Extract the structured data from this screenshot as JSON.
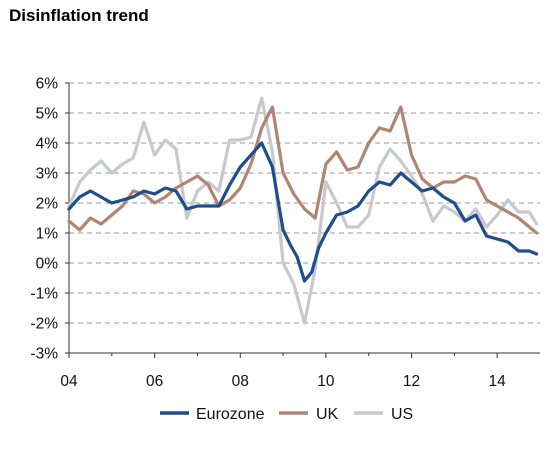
{
  "chart_data": {
    "type": "line",
    "title": "Disinflation trend",
    "xlabel": "",
    "ylabel": "",
    "x_ticks": [
      "04",
      "06",
      "08",
      "10",
      "12",
      "14"
    ],
    "y_ticks": [
      "6%",
      "5%",
      "4%",
      "3%",
      "2%",
      "1%",
      "0%",
      "-1%",
      "-2%",
      "-3%"
    ],
    "xlim": [
      2004.0,
      2015.0
    ],
    "ylim": [
      -3,
      6
    ],
    "grid": "horizontal dashed",
    "legend_position": "bottom",
    "series": [
      {
        "name": "Eurozone",
        "color": "#1f4e8c",
        "x": [
          2004.0,
          2004.25,
          2004.5,
          2004.75,
          2005.0,
          2005.25,
          2005.5,
          2005.75,
          2006.0,
          2006.25,
          2006.5,
          2006.75,
          2007.0,
          2007.25,
          2007.5,
          2007.75,
          2008.0,
          2008.25,
          2008.5,
          2008.75,
          2009.0,
          2009.17,
          2009.33,
          2009.5,
          2009.67,
          2009.83,
          2010.0,
          2010.25,
          2010.5,
          2010.75,
          2011.0,
          2011.25,
          2011.5,
          2011.75,
          2012.0,
          2012.25,
          2012.5,
          2012.75,
          2013.0,
          2013.25,
          2013.5,
          2013.75,
          2014.0,
          2014.25,
          2014.5,
          2014.75,
          2014.92
        ],
        "y": [
          1.8,
          2.2,
          2.4,
          2.2,
          2.0,
          2.1,
          2.2,
          2.4,
          2.3,
          2.5,
          2.4,
          1.8,
          1.9,
          1.9,
          1.9,
          2.6,
          3.2,
          3.6,
          4.0,
          3.2,
          1.1,
          0.6,
          0.2,
          -0.6,
          -0.3,
          0.5,
          1.0,
          1.6,
          1.7,
          1.9,
          2.4,
          2.7,
          2.6,
          3.0,
          2.7,
          2.4,
          2.5,
          2.2,
          2.0,
          1.4,
          1.6,
          0.9,
          0.8,
          0.7,
          0.4,
          0.4,
          0.3
        ]
      },
      {
        "name": "UK",
        "color": "#b08672",
        "x": [
          2004.0,
          2004.25,
          2004.5,
          2004.75,
          2005.0,
          2005.25,
          2005.5,
          2005.75,
          2006.0,
          2006.25,
          2006.5,
          2006.75,
          2007.0,
          2007.25,
          2007.5,
          2007.75,
          2008.0,
          2008.25,
          2008.5,
          2008.75,
          2009.0,
          2009.25,
          2009.5,
          2009.75,
          2010.0,
          2010.25,
          2010.5,
          2010.75,
          2011.0,
          2011.25,
          2011.5,
          2011.75,
          2012.0,
          2012.25,
          2012.5,
          2012.75,
          2013.0,
          2013.25,
          2013.5,
          2013.75,
          2014.0,
          2014.25,
          2014.5,
          2014.75,
          2014.92
        ],
        "y": [
          1.4,
          1.1,
          1.5,
          1.3,
          1.6,
          1.9,
          2.4,
          2.3,
          2.0,
          2.2,
          2.5,
          2.7,
          2.9,
          2.6,
          1.9,
          2.1,
          2.5,
          3.3,
          4.5,
          5.2,
          3.0,
          2.3,
          1.8,
          1.5,
          3.3,
          3.7,
          3.1,
          3.2,
          4.0,
          4.5,
          4.4,
          5.2,
          3.6,
          2.8,
          2.5,
          2.7,
          2.7,
          2.9,
          2.8,
          2.1,
          1.9,
          1.7,
          1.5,
          1.2,
          1.0
        ]
      },
      {
        "name": "US",
        "color": "#c7c9ce",
        "x": [
          2004.0,
          2004.25,
          2004.5,
          2004.75,
          2005.0,
          2005.25,
          2005.5,
          2005.75,
          2006.0,
          2006.25,
          2006.5,
          2006.75,
          2007.0,
          2007.25,
          2007.5,
          2007.75,
          2008.0,
          2008.25,
          2008.5,
          2008.75,
          2009.0,
          2009.25,
          2009.5,
          2009.75,
          2010.0,
          2010.25,
          2010.5,
          2010.75,
          2011.0,
          2011.25,
          2011.5,
          2011.75,
          2012.0,
          2012.25,
          2012.5,
          2012.75,
          2013.0,
          2013.25,
          2013.5,
          2013.75,
          2014.0,
          2014.25,
          2014.5,
          2014.75,
          2014.92
        ],
        "y": [
          1.9,
          2.7,
          3.1,
          3.4,
          3.0,
          3.3,
          3.5,
          4.7,
          3.6,
          4.1,
          3.8,
          1.5,
          2.4,
          2.7,
          2.4,
          4.1,
          4.1,
          4.2,
          5.5,
          3.7,
          0.0,
          -0.7,
          -2.0,
          -0.2,
          2.7,
          2.0,
          1.2,
          1.2,
          1.6,
          3.2,
          3.8,
          3.4,
          2.9,
          2.3,
          1.4,
          1.9,
          1.7,
          1.4,
          1.8,
          1.2,
          1.6,
          2.1,
          1.7,
          1.7,
          1.3
        ]
      }
    ]
  }
}
